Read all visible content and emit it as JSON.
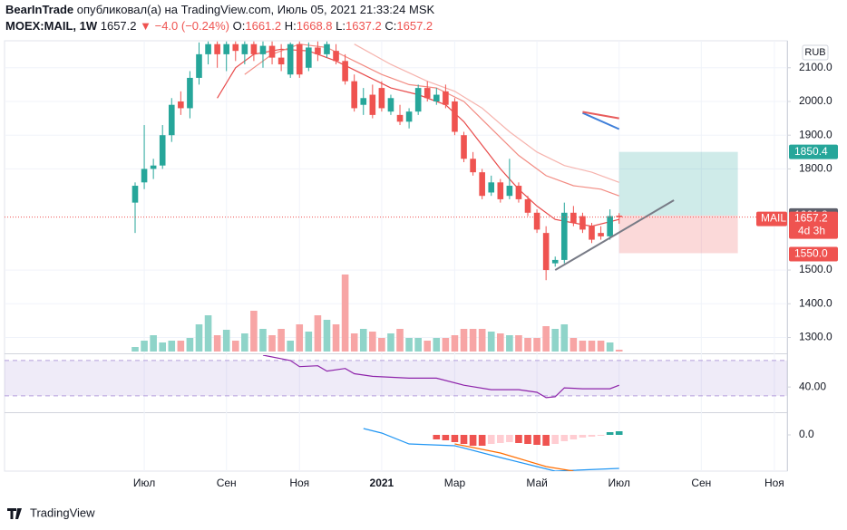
{
  "header": {
    "author": "BearInTrade",
    "published": "опубликовал(а) на TradingView.com, Июль 05, 2021 21:33:24 MSK",
    "symbol": "MOEX:MAIL, 1W",
    "change": "▼ −4.0 (−0.24%)",
    "ohlc_labels": [
      "O:",
      "H:",
      "L:",
      "C:"
    ]
  },
  "footer": {
    "brand": "TradingView"
  },
  "chart_data": {
    "type": "candlestick",
    "currency": "RUB",
    "ticker": "MAIL",
    "up_color": "#26a69a",
    "down_color": "#ef5350",
    "open": [
      1700,
      1760,
      1800,
      1810,
      1900,
      2000,
      1980,
      2070,
      2140,
      2170,
      2140,
      2170,
      2140,
      2170,
      2140,
      2165,
      2130,
      2080,
      2170,
      2100,
      2160,
      2140,
      2150,
      2120,
      2060,
      1990,
      2020,
      2040,
      1970,
      1960,
      1940,
      1970,
      2040,
      2000,
      2030,
      2000,
      1900,
      1830,
      1790,
      1730,
      1760,
      1720,
      1750,
      1710,
      1670,
      1610,
      1520,
      1530,
      1670,
      1660,
      1630,
      1610,
      1600,
      1661.2
    ],
    "high": [
      1760,
      1930,
      1830,
      1930,
      2010,
      2030,
      2090,
      2175,
      2178,
      2178,
      2178,
      2178,
      2178,
      2178,
      2178,
      2178,
      2170,
      2175,
      2178,
      2175,
      2178,
      2178,
      2170,
      2140,
      2080,
      2040,
      2050,
      2060,
      2020,
      1990,
      1980,
      2050,
      2060,
      2040,
      2050,
      2010,
      1910,
      1850,
      1800,
      1780,
      1770,
      1830,
      1760,
      1720,
      1680,
      1630,
      1540,
      1700,
      1690,
      1670,
      1640,
      1630,
      1680,
      1668.8
    ],
    "low": [
      1610,
      1740,
      1770,
      1800,
      1880,
      1960,
      1950,
      2050,
      2110,
      2100,
      2090,
      2120,
      2110,
      2120,
      2100,
      2110,
      2090,
      2070,
      2070,
      2090,
      2120,
      2130,
      2110,
      2050,
      1970,
      1960,
      1950,
      1970,
      1960,
      1930,
      1920,
      1960,
      2000,
      1990,
      1980,
      1900,
      1820,
      1780,
      1710,
      1720,
      1700,
      1710,
      1700,
      1660,
      1610,
      1470,
      1510,
      1520,
      1630,
      1610,
      1580,
      1590,
      1590,
      1637.2
    ],
    "close": [
      1750,
      1800,
      1810,
      1900,
      1990,
      1980,
      2070,
      2140,
      2170,
      2140,
      2170,
      2150,
      2170,
      2140,
      2165,
      2130,
      2110,
      2170,
      2080,
      2160,
      2140,
      2170,
      2120,
      2060,
      1980,
      2010,
      1960,
      1980,
      2010,
      1940,
      1970,
      2040,
      2010,
      2020,
      1990,
      1910,
      1830,
      1790,
      1720,
      1760,
      1710,
      1750,
      1710,
      1670,
      1620,
      1500,
      1530,
      1670,
      1640,
      1620,
      1590,
      1600,
      1660,
      1657.2
    ],
    "volume": [
      5,
      12,
      18,
      10,
      12,
      12,
      15,
      30,
      40,
      18,
      24,
      12,
      20,
      45,
      25,
      18,
      25,
      12,
      30,
      22,
      40,
      35,
      30,
      85,
      20,
      25,
      22,
      15,
      20,
      25,
      15,
      15,
      12,
      15,
      15,
      18,
      25,
      25,
      25,
      22,
      20,
      18,
      18,
      15,
      15,
      28,
      25,
      30,
      15,
      12,
      12,
      12,
      10,
      2
    ],
    "volume_colors": {
      "up": "#8fd4c9",
      "down": "#f7a5a5"
    },
    "vlim": [
      0,
      100
    ],
    "moving_averages": [
      {
        "color": "#e84a4a",
        "x": [
          9,
          11,
          13,
          16,
          19,
          22,
          25,
          28,
          31,
          34,
          36,
          38,
          40,
          42,
          44,
          46,
          48,
          50,
          53
        ],
        "values": [
          2010,
          2100,
          2140,
          2155,
          2150,
          2120,
          2080,
          2040,
          2020,
          1990,
          1940,
          1870,
          1800,
          1740,
          1690,
          1650,
          1640,
          1630,
          1650
        ]
      },
      {
        "color": "#f28b82",
        "x": [
          12,
          15,
          18,
          21,
          24,
          27,
          30,
          33,
          36,
          39,
          42,
          45,
          48,
          51,
          53
        ],
        "values": [
          2080,
          2140,
          2170,
          2160,
          2120,
          2080,
          2050,
          2040,
          2000,
          1920,
          1840,
          1780,
          1750,
          1740,
          1720
        ]
      },
      {
        "color": "#f6b3ad",
        "x": [
          24,
          28,
          32,
          35,
          38,
          41,
          44,
          47,
          50,
          53
        ],
        "values": [
          2170,
          2110,
          2060,
          2030,
          1980,
          1910,
          1850,
          1810,
          1790,
          1760
        ]
      }
    ],
    "xlim": [
      -14.3,
      71.4
    ],
    "xticks": [
      {
        "value": 1,
        "label": "Июл"
      },
      {
        "value": 10,
        "label": "Сен"
      },
      {
        "value": 18,
        "label": "Ноя"
      },
      {
        "value": 27,
        "label": "2021"
      },
      {
        "value": 35,
        "label": "Мар"
      },
      {
        "value": 44,
        "label": "Май"
      },
      {
        "value": 53,
        "label": "Июл"
      },
      {
        "value": 62,
        "label": "Сен"
      },
      {
        "value": 70,
        "label": "Ноя"
      }
    ],
    "ylim": [
      1253,
      2180
    ],
    "yticks": [
      {
        "value": 2100,
        "label": "2100.0"
      },
      {
        "value": 2000,
        "label": "2000.0"
      },
      {
        "value": 1900,
        "label": "1900.0"
      },
      {
        "value": 1800,
        "label": "1800.0"
      },
      {
        "value": 1500,
        "label": "1500.0"
      },
      {
        "value": 1400,
        "label": "1400.0"
      },
      {
        "value": 1300,
        "label": "1300.0"
      }
    ],
    "grid": true,
    "countdown": "4d 3h",
    "position": {
      "start": 53,
      "end": 66,
      "target": 1850.4,
      "entry": 1661.8,
      "stop": {
        "value": 1550,
        "label": "1550.0"
      }
    },
    "trendlines": [
      {
        "color": "#787b86",
        "points": [
          [
            46,
            1500
          ],
          [
            59,
            1707
          ]
        ]
      },
      {
        "color": "#3f7fd9",
        "points": [
          [
            49,
            1966
          ],
          [
            53,
            1918
          ]
        ]
      },
      {
        "color": "#e85c5c",
        "points": [
          [
            49,
            1969
          ],
          [
            53,
            1950
          ]
        ]
      }
    ],
    "rsi": {
      "color": "#8e24aa",
      "x": [
        14,
        17,
        18,
        20,
        21,
        23,
        24,
        26,
        30,
        33,
        36,
        39,
        42,
        44,
        45,
        46,
        47,
        49,
        52,
        53
      ],
      "values": [
        76,
        70,
        63,
        64,
        58,
        61,
        55,
        52,
        50,
        50,
        42,
        37,
        37,
        34,
        28,
        29,
        39,
        38,
        38,
        42
      ],
      "bands": [
        70,
        30
      ],
      "ylim": [
        11.5,
        76
      ],
      "yticks": [
        {
          "value": 40,
          "label": "40.00"
        }
      ]
    },
    "macd": {
      "x": [
        33,
        34,
        35,
        36,
        37,
        38,
        39,
        40,
        41,
        42,
        43,
        44,
        45,
        46,
        47,
        48,
        49,
        50,
        51,
        52,
        53
      ],
      "histogram": [
        -5,
        -6,
        -8,
        -10,
        -12,
        -12,
        -10,
        -9,
        -8,
        -9,
        -10,
        -11,
        -12,
        -10,
        -7,
        -5,
        -3,
        -2,
        -1,
        3,
        4
      ],
      "macd_x": [
        25,
        27,
        30,
        35,
        40,
        44,
        46,
        53
      ],
      "macd_values": [
        7,
        2,
        -10,
        -12,
        -25,
        -35,
        -40,
        -37
      ],
      "macd_color": "#2196f3",
      "signal_x": [
        35,
        40,
        45,
        48
      ],
      "signal_values": [
        -10,
        -20,
        -35,
        -40
      ],
      "signal_color": "#ff6d00",
      "ylim": [
        -40,
        23
      ],
      "yticks": [
        {
          "value": 0,
          "label": "0.0"
        }
      ]
    }
  }
}
